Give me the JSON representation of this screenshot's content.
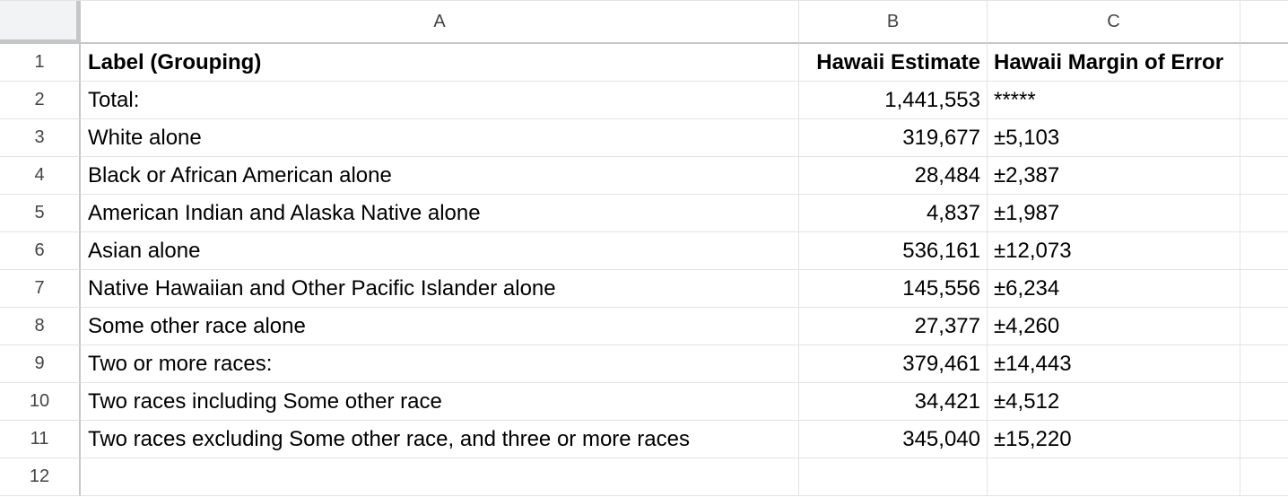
{
  "columns": [
    "A",
    "B",
    "C"
  ],
  "row_numbers": [
    "1",
    "2",
    "3",
    "4",
    "5",
    "6",
    "7",
    "8",
    "9",
    "10",
    "11",
    "12"
  ],
  "header": {
    "label": "Label (Grouping)",
    "estimate": "Hawaii Estimate",
    "moe": "Hawaii Margin of Error"
  },
  "rows": [
    {
      "label": "Total:",
      "estimate": "1,441,553",
      "moe": "*****"
    },
    {
      "label": "White alone",
      "estimate": "319,677",
      "moe": "±5,103"
    },
    {
      "label": "Black or African American alone",
      "estimate": "28,484",
      "moe": "±2,387"
    },
    {
      "label": "American Indian and Alaska Native alone",
      "estimate": "4,837",
      "moe": "±1,987"
    },
    {
      "label": "Asian alone",
      "estimate": "536,161",
      "moe": "±12,073"
    },
    {
      "label": "Native Hawaiian and Other Pacific Islander alone",
      "estimate": "145,556",
      "moe": "±6,234"
    },
    {
      "label": "Some other race alone",
      "estimate": "27,377",
      "moe": "±4,260"
    },
    {
      "label": "Two or more races:",
      "estimate": "379,461",
      "moe": "±14,443"
    },
    {
      "label": "Two races including Some other race",
      "estimate": "34,421",
      "moe": "±4,512"
    },
    {
      "label": "Two races excluding Some other race, and three or more races",
      "estimate": "345,040",
      "moe": "±15,220"
    }
  ],
  "colors": {
    "grid": "#e2e3e3",
    "header_border": "#c4c7c5",
    "corner": "#f1f3f4"
  }
}
